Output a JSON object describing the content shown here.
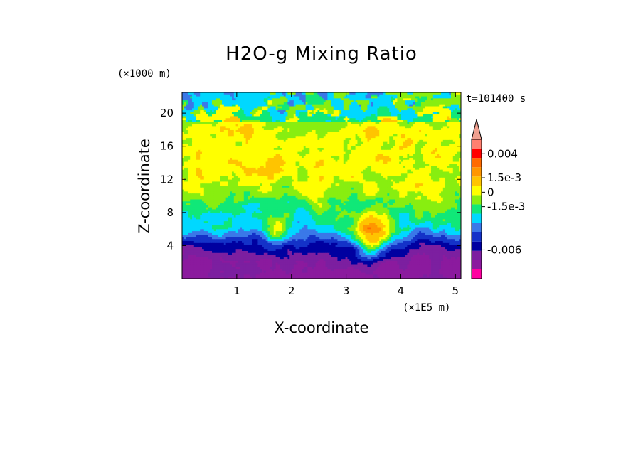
{
  "chart_data": {
    "type": "heatmap",
    "title": "H2O-g Mixing Ratio",
    "xlabel": "X-coordinate",
    "ylabel": "Z-coordinate",
    "x_unit": "(×1E5 m)",
    "y_unit": "(×1000 m)",
    "time_label": "t=101400 s",
    "xlim": [
      0,
      5.1
    ],
    "ylim": [
      0,
      22.5
    ],
    "x_ticks": [
      1,
      2,
      3,
      4,
      5
    ],
    "y_ticks": [
      4,
      8,
      12,
      16,
      20
    ],
    "colorbar": {
      "colors": [
        "#ff00a0",
        "#8b1a9e",
        "#7c1fa0",
        "#0000a0",
        "#1432c8",
        "#3a78e8",
        "#00d8ff",
        "#10e878",
        "#88ee10",
        "#ffff00",
        "#ffc400",
        "#ff9600",
        "#ff6a00",
        "#ff0000",
        "#ff8070",
        "#f0a090"
      ],
      "tick_labels": [
        "0.004",
        "1.5e-3",
        "0",
        "-1.5e-3",
        "-0.006"
      ],
      "tick_positions": [
        0.004,
        0.0015,
        0,
        -0.0015,
        -0.006
      ],
      "range": [
        -0.009,
        0.0055
      ]
    },
    "bands": [
      {
        "z": 2,
        "level": 1
      },
      {
        "z": 4,
        "level": 3
      },
      {
        "z": 6,
        "level": 6
      },
      {
        "z": 8,
        "level": 7
      },
      {
        "z": 10,
        "level": 8
      },
      {
        "z": 14,
        "level": 9
      },
      {
        "z": 18,
        "level": 9
      },
      {
        "z": 21,
        "level": 7
      }
    ]
  }
}
